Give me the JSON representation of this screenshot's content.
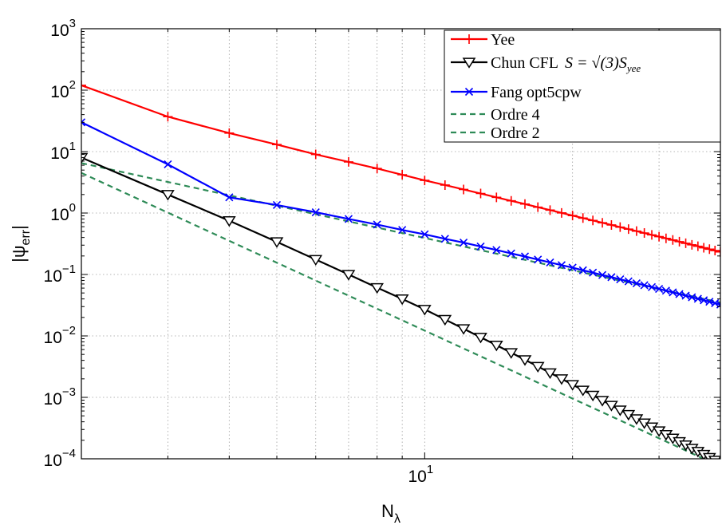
{
  "chart_data": {
    "type": "line",
    "xscale": "log",
    "yscale": "log",
    "xlim": [
      2,
      40
    ],
    "ylim": [
      0.0001,
      1000
    ],
    "grid": true,
    "legend_position": "top-right",
    "xlabel_main": "N",
    "xlabel_sub": "λ",
    "ylabel": "|ψ_err|",
    "y_ticks": [
      {
        "value": 0.0001,
        "base": "10",
        "exp": "−4"
      },
      {
        "value": 0.001,
        "base": "10",
        "exp": "−3"
      },
      {
        "value": 0.01,
        "base": "10",
        "exp": "−2"
      },
      {
        "value": 0.1,
        "base": "10",
        "exp": "−1"
      },
      {
        "value": 1,
        "base": "10",
        "exp": "0"
      },
      {
        "value": 10,
        "base": "10",
        "exp": "1"
      },
      {
        "value": 100,
        "base": "10",
        "exp": "2"
      },
      {
        "value": 1000,
        "base": "10",
        "exp": "3"
      }
    ],
    "x_ticks": [
      {
        "value": 10,
        "base": "10",
        "exp": "1"
      }
    ],
    "series": [
      {
        "name": "Yee",
        "legend_label": "Yee",
        "color": "#ff0000",
        "marker": "plus",
        "style": "solid",
        "x": [
          2,
          3,
          4,
          5,
          6,
          7,
          8,
          9,
          10,
          11,
          12,
          13,
          14,
          15,
          16,
          17,
          18,
          19,
          20,
          21,
          22,
          23,
          24,
          25,
          26,
          27,
          28,
          29,
          30,
          31,
          32,
          33,
          34,
          35,
          36,
          37,
          38,
          39,
          40
        ],
        "y": [
          120,
          37,
          20,
          13,
          9.0,
          6.8,
          5.3,
          4.2,
          3.4,
          2.85,
          2.42,
          2.08,
          1.8,
          1.58,
          1.4,
          1.245,
          1.115,
          1.005,
          0.91,
          0.828,
          0.757,
          0.694,
          0.639,
          0.59,
          0.547,
          0.508,
          0.473,
          0.441,
          0.413,
          0.387,
          0.364,
          0.342,
          0.322,
          0.304,
          0.288,
          0.272,
          0.258,
          0.245,
          0.233
        ]
      },
      {
        "name": "Chun CFL",
        "legend_label": "Chun CFL",
        "legend_math": "S = √(3)S",
        "legend_math_sub": "yee",
        "color": "#000000",
        "marker": "triangle-down",
        "style": "solid",
        "x": [
          2,
          3,
          4,
          5,
          6,
          7,
          8,
          9,
          10,
          11,
          12,
          13,
          14,
          15,
          16,
          17,
          18,
          19,
          20,
          21,
          22,
          23,
          24,
          25,
          26,
          27,
          28,
          29,
          30,
          31,
          32,
          33,
          34,
          35,
          36,
          37,
          38,
          39,
          40
        ],
        "y": [
          8,
          2.0,
          0.75,
          0.34,
          0.175,
          0.1,
          0.061,
          0.04,
          0.027,
          0.0185,
          0.0131,
          0.0095,
          0.00706,
          0.00533,
          0.00409,
          0.00318,
          0.00251,
          0.002,
          0.00161,
          0.00131,
          0.00108,
          0.00089,
          0.000741,
          0.000622,
          0.000526,
          0.000447,
          0.000383,
          0.000329,
          0.000285,
          0.000248,
          0.000217,
          0.00019,
          0.000168,
          0.000148,
          0.000132,
          0.000118,
          0.000105,
          9.47e-05,
          8.53e-05
        ]
      },
      {
        "name": "Fang opt5cpw",
        "legend_label": "Fang opt5cpw",
        "color": "#0000ff",
        "marker": "x",
        "style": "solid",
        "x": [
          2,
          3,
          4,
          5,
          6,
          7,
          8,
          9,
          10,
          11,
          12,
          13,
          14,
          15,
          16,
          17,
          18,
          19,
          20,
          21,
          22,
          23,
          24,
          25,
          26,
          27,
          28,
          29,
          30,
          31,
          32,
          33,
          34,
          35,
          36,
          37,
          38,
          39,
          40
        ],
        "y": [
          30,
          6.2,
          1.8,
          1.35,
          1.03,
          0.8,
          0.65,
          0.53,
          0.45,
          0.38,
          0.33,
          0.285,
          0.25,
          0.22,
          0.196,
          0.175,
          0.157,
          0.142,
          0.129,
          0.117,
          0.107,
          0.098,
          0.0904,
          0.0835,
          0.0774,
          0.0718,
          0.0668,
          0.0623,
          0.0582,
          0.0545,
          0.0511,
          0.048,
          0.0452,
          0.0426,
          0.0402,
          0.038,
          0.036,
          0.0341,
          0.0324
        ]
      },
      {
        "name": "Ordre 4",
        "legend_label": "Ordre 4",
        "color": "#2e8b57",
        "marker": "none",
        "style": "dashed",
        "x": [
          2,
          40
        ],
        "y": [
          6.5,
          0.035
        ]
      },
      {
        "name": "Ordre 2",
        "legend_label": "Ordre 2",
        "color": "#2e8b57",
        "marker": "none",
        "style": "dashed",
        "x": [
          2,
          40
        ],
        "y": [
          4.5,
          7.5e-05
        ]
      }
    ]
  }
}
